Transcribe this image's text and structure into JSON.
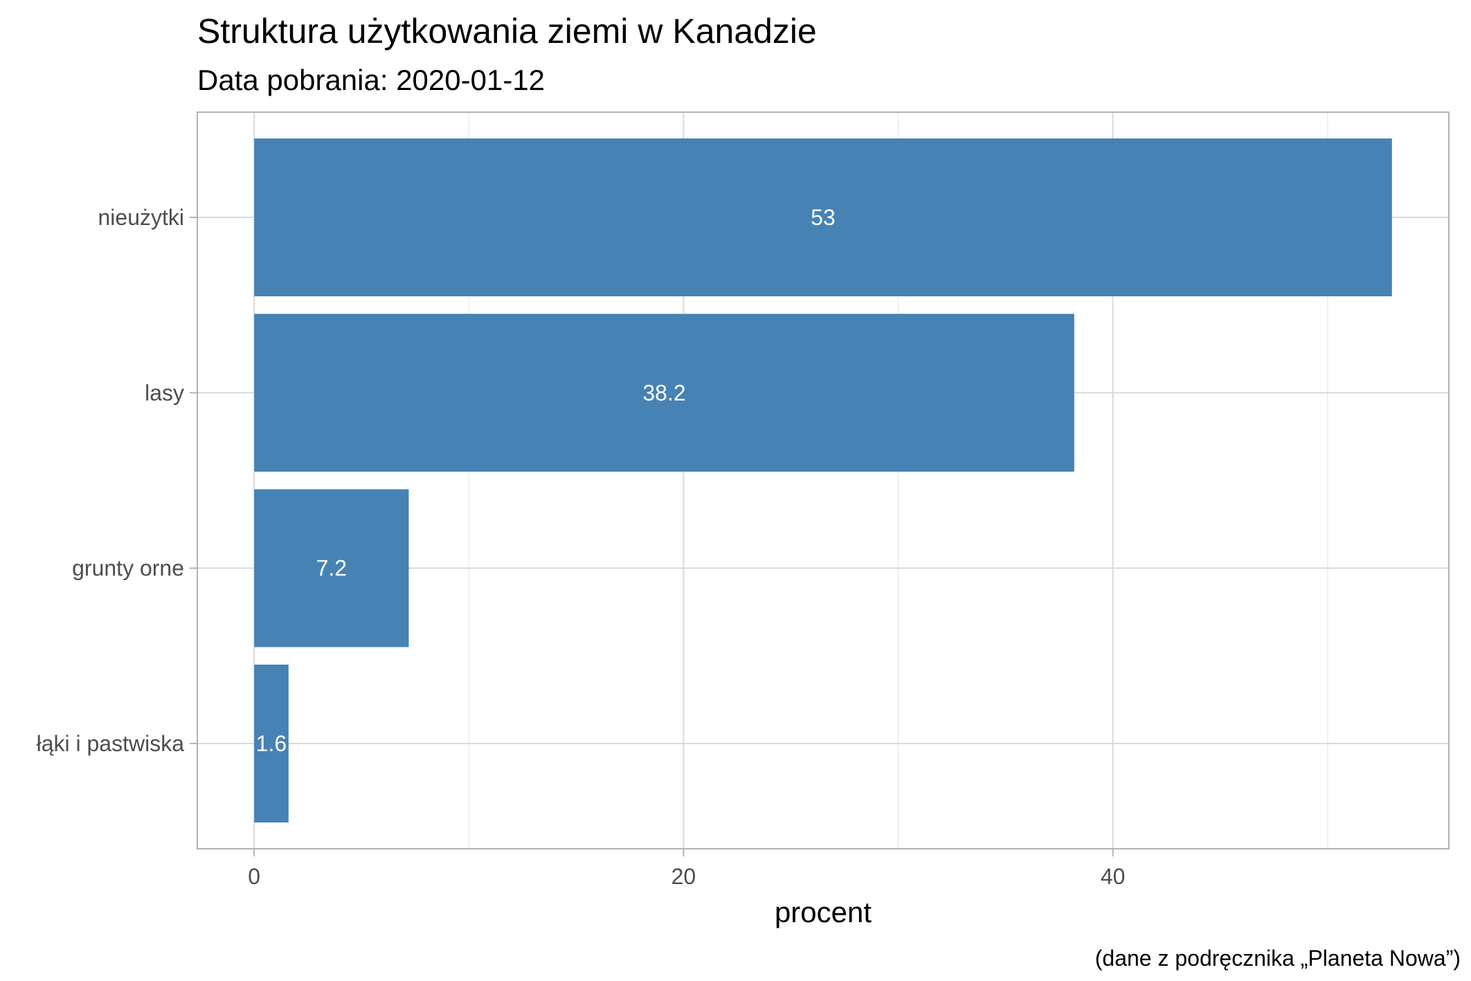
{
  "chart_data": {
    "type": "bar",
    "orientation": "horizontal",
    "title": "Struktura użytkowania ziemi w Kanadzie",
    "subtitle": "Data pobrania: 2020-01-12",
    "xlabel": "procent",
    "ylabel": "",
    "caption": "(dane z podręcznika „Planeta Nowa”)",
    "categories": [
      "nieużytki",
      "lasy",
      "grunty orne",
      "łąki i pastwiska"
    ],
    "values": [
      53,
      38.2,
      7.2,
      1.6
    ],
    "value_labels": [
      "53",
      "38.2",
      "7.2",
      "1.6"
    ],
    "xlim": [
      -2.65,
      55.65
    ],
    "x_ticks": [
      0,
      20,
      40
    ],
    "x_tick_labels": [
      "0",
      "20",
      "40"
    ],
    "grid": true,
    "legend": "none",
    "colors": {
      "bar": "#4682B4",
      "grid_major": "#d9d9d9",
      "grid_minor": "#ebebeb",
      "panel_border": "#b3b3b3",
      "tick": "#b3b3b3"
    }
  }
}
